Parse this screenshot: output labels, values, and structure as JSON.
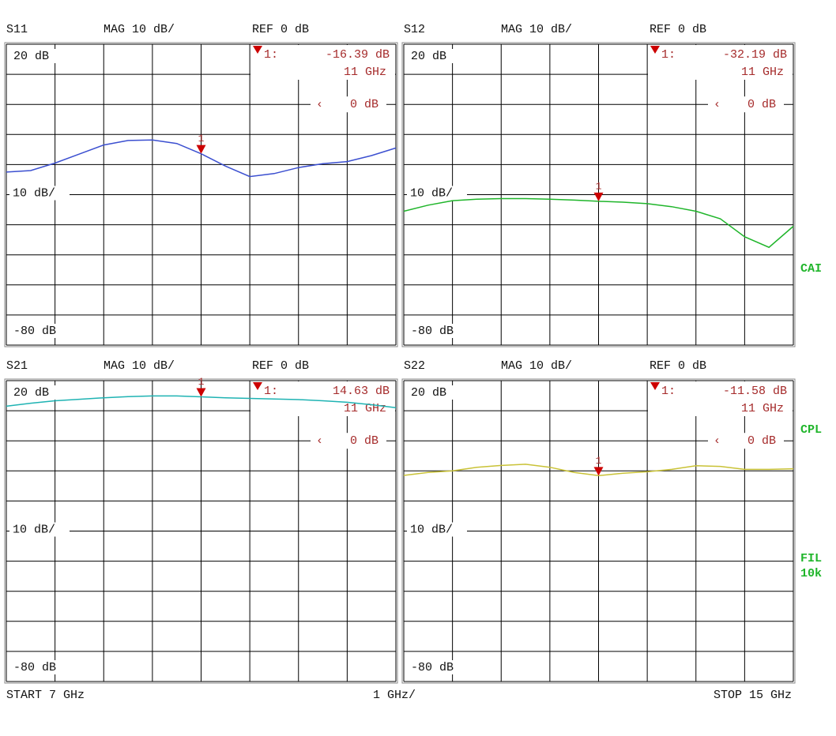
{
  "chart_data": [
    {
      "type": "line",
      "title": "S11",
      "format_label": "MAG 10 dB/",
      "ref_label": "REF 0 dB",
      "scale_label": "10 dB/",
      "xlim": [
        7,
        15
      ],
      "ylim": [
        -80,
        20
      ],
      "xgrid": [
        7,
        8,
        9,
        10,
        11,
        12,
        13,
        14,
        15
      ],
      "ygrid": [
        20,
        10,
        0,
        -10,
        -20,
        -30,
        -40,
        -50,
        -60,
        -70,
        -80
      ],
      "yticks": [
        {
          "value": 20,
          "label": "20 dB"
        },
        {
          "value": -80,
          "label": "-80 dB"
        }
      ],
      "color": "#3b4fd0",
      "x": [
        7,
        7.5,
        8,
        8.5,
        9,
        9.5,
        10,
        10.5,
        11,
        11.5,
        12,
        12.5,
        13,
        13.5,
        14,
        14.5,
        15
      ],
      "values": [
        -22.5,
        -22,
        -19.5,
        -16.5,
        -13.5,
        -12,
        -11.8,
        -13,
        -16.4,
        -20.5,
        -24,
        -23,
        -21,
        -19.7,
        -19,
        -17,
        -14.5
      ],
      "marker": {
        "x": 11,
        "value": -16.39,
        "label": "1",
        "readout_index": "1:",
        "value_label": "-16.39 dB",
        "x_label": "11 GHz"
      },
      "ref_marker": {
        "value": 0,
        "label": "0 dB"
      }
    },
    {
      "type": "line",
      "title": "S12",
      "format_label": "MAG 10 dB/",
      "ref_label": "REF 0 dB",
      "scale_label": "10 dB/",
      "xlim": [
        7,
        15
      ],
      "ylim": [
        -80,
        20
      ],
      "xgrid": [
        7,
        8,
        9,
        10,
        11,
        12,
        13,
        14,
        15
      ],
      "ygrid": [
        20,
        10,
        0,
        -10,
        -20,
        -30,
        -40,
        -50,
        -60,
        -70,
        -80
      ],
      "yticks": [
        {
          "value": 20,
          "label": "20 dB"
        },
        {
          "value": -80,
          "label": "-80 dB"
        }
      ],
      "color": "#1fb52a",
      "x": [
        7,
        7.5,
        8,
        8.5,
        9,
        9.5,
        10,
        10.5,
        11,
        11.5,
        12,
        12.5,
        13,
        13.5,
        14,
        14.5,
        15
      ],
      "values": [
        -35.5,
        -33.5,
        -32,
        -31.5,
        -31.3,
        -31.3,
        -31.5,
        -31.8,
        -32.2,
        -32.5,
        -33,
        -34,
        -35.5,
        -38,
        -44,
        -47.5,
        -40.5
      ],
      "marker": {
        "x": 11,
        "value": -32.19,
        "label": "1",
        "readout_index": "1:",
        "value_label": "-32.19 dB",
        "x_label": "11 GHz"
      },
      "ref_marker": {
        "value": 0,
        "label": "0 dB"
      }
    },
    {
      "type": "line",
      "title": "S21",
      "format_label": "MAG 10 dB/",
      "ref_label": "REF 0 dB",
      "scale_label": "10 dB/",
      "xlim": [
        7,
        15
      ],
      "ylim": [
        -80,
        20
      ],
      "xgrid": [
        7,
        8,
        9,
        10,
        11,
        12,
        13,
        14,
        15
      ],
      "ygrid": [
        20,
        10,
        0,
        -10,
        -20,
        -30,
        -40,
        -50,
        -60,
        -70,
        -80
      ],
      "yticks": [
        {
          "value": 20,
          "label": "20 dB"
        },
        {
          "value": -80,
          "label": "-80 dB"
        }
      ],
      "color": "#1fb3b3",
      "x": [
        7,
        7.5,
        8,
        8.5,
        9,
        9.5,
        10,
        10.5,
        11,
        11.5,
        12,
        12.5,
        13,
        13.5,
        14,
        14.5,
        15
      ],
      "values": [
        11.5,
        12.5,
        13.3,
        13.8,
        14.3,
        14.7,
        14.9,
        14.9,
        14.63,
        14.3,
        14.1,
        13.9,
        13.7,
        13.3,
        12.8,
        12,
        11
      ],
      "marker": {
        "x": 11,
        "value": 14.63,
        "label": "1",
        "readout_index": "1:",
        "value_label": "14.63 dB",
        "x_label": "11 GHz"
      },
      "ref_marker": {
        "value": 0,
        "label": "0 dB"
      }
    },
    {
      "type": "line",
      "title": "S22",
      "format_label": "MAG 10 dB/",
      "ref_label": "REF 0 dB",
      "scale_label": "10 dB/",
      "xlim": [
        7,
        15
      ],
      "ylim": [
        -80,
        20
      ],
      "xgrid": [
        7,
        8,
        9,
        10,
        11,
        12,
        13,
        14,
        15
      ],
      "ygrid": [
        20,
        10,
        0,
        -10,
        -20,
        -30,
        -40,
        -50,
        -60,
        -70,
        -80
      ],
      "yticks": [
        {
          "value": 20,
          "label": "20 dB"
        },
        {
          "value": -80,
          "label": "-80 dB"
        }
      ],
      "color": "#c9c236",
      "x": [
        7,
        7.5,
        8,
        8.5,
        9,
        9.5,
        10,
        10.5,
        11,
        11.5,
        12,
        12.5,
        13,
        13.5,
        14,
        14.5,
        15
      ],
      "values": [
        -11.5,
        -10.5,
        -10,
        -8.8,
        -8.2,
        -7.8,
        -8.8,
        -10.5,
        -11.58,
        -10.8,
        -10.3,
        -9.5,
        -8.3,
        -8.5,
        -9.5,
        -9.5,
        -9.3
      ],
      "marker": {
        "x": 11,
        "value": -11.58,
        "label": "1",
        "readout_index": "1:",
        "value_label": "-11.58 dB",
        "x_label": "11 GHz"
      },
      "ref_marker": {
        "value": 0,
        "label": "0 dB"
      }
    }
  ],
  "footer": {
    "start": "START  7 GHz",
    "span": "1 GHz/",
    "stop": "STOP 15 GHz"
  },
  "side_labels": [
    "CAI",
    "CPL",
    "FIL",
    "10k"
  ]
}
